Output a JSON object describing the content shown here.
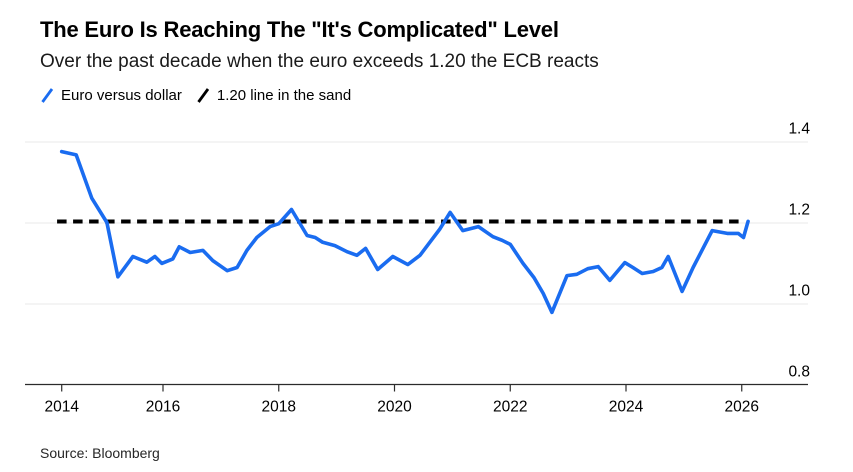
{
  "header": {
    "title": "The Euro Is Reaching The \"It's Complicated\" Level",
    "subtitle": "Over the past decade when the euro exceeds 1.20 the ECB reacts"
  },
  "legend": [
    {
      "label": "Euro versus dollar",
      "color": "#1a6cf0"
    },
    {
      "label": "1.20 line in the sand",
      "color": "#000000"
    }
  ],
  "source": "Source: Bloomberg",
  "colors": {
    "line": "#1a6cf0",
    "threshold": "#000000",
    "grid": "#e8e8e8",
    "axis": "#2b2b2b",
    "tick_text": "#000000"
  },
  "chart_data": {
    "type": "line",
    "title": "The Euro Is Reaching The \"It's Complicated\" Level",
    "subtitle": "Over the past decade when the euro exceeds 1.20 the ECB reacts",
    "xlabel": "",
    "ylabel": "",
    "ylim": [
      0.8,
      1.44
    ],
    "xlim": [
      2013.6,
      2027.1
    ],
    "grid": true,
    "legend_position": "top",
    "xticks": [
      2014,
      2016,
      2018,
      2020,
      2022,
      2024,
      2026
    ],
    "yticks": [
      0.8,
      1.0,
      1.2,
      1.4
    ],
    "ytick_labels": [
      "0.8",
      "1.0",
      "1.2",
      "1.4"
    ],
    "x": [
      2014.25,
      2014.5,
      2014.77,
      2015.03,
      2015.22,
      2015.48,
      2015.72,
      2015.86,
      2015.98,
      2016.17,
      2016.28,
      2016.47,
      2016.69,
      2016.86,
      2017.11,
      2017.28,
      2017.45,
      2017.62,
      2017.85,
      2018.0,
      2018.22,
      2018.49,
      2018.63,
      2018.76,
      2018.97,
      2019.18,
      2019.35,
      2019.5,
      2019.71,
      2019.97,
      2020.23,
      2020.44,
      2020.61,
      2020.78,
      2020.96,
      2021.18,
      2021.45,
      2021.7,
      2021.86,
      2022.0,
      2022.22,
      2022.41,
      2022.57,
      2022.72,
      2022.98,
      2023.15,
      2023.34,
      2023.52,
      2023.72,
      2023.98,
      2024.12,
      2024.28,
      2024.47,
      2024.62,
      2024.73,
      2024.97,
      2025.16,
      2025.49,
      2025.75,
      2025.94,
      2026.03,
      2026.11
    ],
    "series": [
      {
        "name": "Euro versus dollar",
        "values": [
          1.375,
          1.367,
          1.26,
          1.2,
          1.066,
          1.116,
          1.102,
          1.116,
          1.099,
          1.11,
          1.14,
          1.126,
          1.131,
          1.106,
          1.081,
          1.089,
          1.131,
          1.163,
          1.19,
          1.197,
          1.232,
          1.168,
          1.163,
          1.151,
          1.143,
          1.128,
          1.119,
          1.136,
          1.084,
          1.116,
          1.096,
          1.119,
          1.151,
          1.183,
          1.225,
          1.18,
          1.19,
          1.165,
          1.156,
          1.146,
          1.099,
          1.064,
          1.025,
          0.978,
          1.069,
          1.072,
          1.086,
          1.091,
          1.057,
          1.101,
          1.089,
          1.074,
          1.079,
          1.089,
          1.116,
          1.03,
          1.089,
          1.18,
          1.173,
          1.173,
          1.163,
          1.203
        ]
      }
    ],
    "threshold": {
      "name": "1.20 line in the sand",
      "value": 1.2,
      "x_span": [
        2014.17,
        2026.04
      ],
      "style": "dashed"
    }
  }
}
